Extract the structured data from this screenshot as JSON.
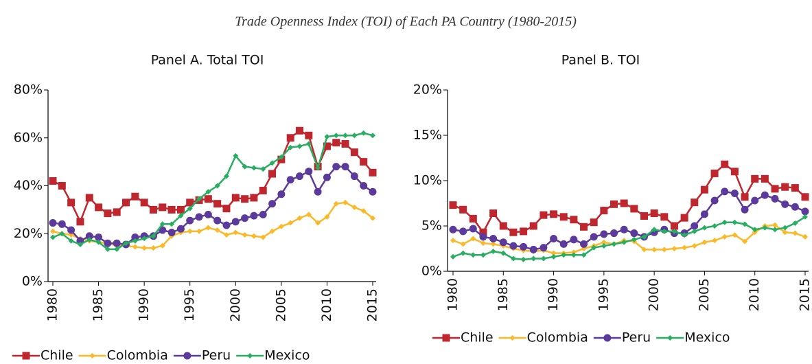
{
  "title": "Trade Openness Index (TOI) of Each PA Country (1980-2015)",
  "chart_data": [
    {
      "type": "line",
      "title": "Panel A. Total TOI",
      "x": [
        1980,
        1981,
        1982,
        1983,
        1984,
        1985,
        1986,
        1987,
        1988,
        1989,
        1990,
        1991,
        1992,
        1993,
        1994,
        1995,
        1996,
        1997,
        1998,
        1999,
        2000,
        2001,
        2002,
        2003,
        2004,
        2005,
        2006,
        2007,
        2008,
        2009,
        2010,
        2011,
        2012,
        2013,
        2014,
        2015
      ],
      "xlim": [
        1980,
        2015
      ],
      "xticks": [
        1980,
        1985,
        1990,
        1995,
        2000,
        2005,
        2010,
        2015
      ],
      "ylim": [
        0,
        80
      ],
      "yticks": [
        {
          "value": 0,
          "label": "0%"
        },
        {
          "value": 20,
          "label": "20%"
        },
        {
          "value": 40,
          "label": "40%"
        },
        {
          "value": 60,
          "label": "60%"
        },
        {
          "value": 80,
          "label": "80%"
        }
      ],
      "legend": "bottom",
      "series": [
        {
          "name": "Chile",
          "color": "#c0262d",
          "marker": "square",
          "values": [
            42,
            40,
            33,
            25,
            35,
            31,
            28.5,
            29,
            33,
            35.5,
            33,
            30,
            31,
            30,
            30,
            33,
            34,
            34.5,
            32.5,
            30.5,
            35,
            34.5,
            35,
            38,
            45,
            51,
            60,
            63,
            61,
            48,
            56.5,
            58,
            57.5,
            54,
            50,
            45.5
          ]
        },
        {
          "name": "Colombia",
          "color": "#fbb827",
          "marker": "diamond",
          "values": [
            21,
            20,
            19.5,
            18,
            17,
            16.5,
            16,
            15,
            15,
            14.5,
            14,
            14,
            15,
            19,
            20.5,
            21,
            21,
            22.5,
            21.5,
            19.5,
            20.5,
            19.5,
            19,
            18.5,
            21,
            23,
            24.5,
            26.5,
            28,
            24.5,
            27,
            32.5,
            33,
            31,
            29.5,
            26.5
          ]
        },
        {
          "name": "Peru",
          "color": "#5b3a9b",
          "marker": "circle",
          "values": [
            24.5,
            24,
            21.5,
            17,
            19,
            18.5,
            16,
            16,
            15.5,
            18.5,
            19,
            19,
            21.5,
            20.5,
            22,
            25.5,
            27,
            28,
            25.5,
            23.5,
            25,
            26.5,
            27.5,
            28,
            32.5,
            36.5,
            42.5,
            44,
            46,
            37.5,
            43.5,
            48,
            48,
            44,
            40,
            37.5
          ]
        },
        {
          "name": "Mexico",
          "color": "#27ae60",
          "marker": "diamond",
          "values": [
            18.5,
            20,
            17,
            15.5,
            17.5,
            16.5,
            13.5,
            13.5,
            16,
            17,
            18,
            19,
            24,
            24,
            27.5,
            30.5,
            34.5,
            37.5,
            40,
            44,
            52.5,
            48,
            47.5,
            47,
            49.5,
            52,
            56,
            56.5,
            57.5,
            47.5,
            60.5,
            61,
            61,
            61,
            62,
            61
          ]
        }
      ]
    },
    {
      "type": "line",
      "title": "Panel B. TOI",
      "x": [
        1980,
        1981,
        1982,
        1983,
        1984,
        1985,
        1986,
        1987,
        1988,
        1989,
        1990,
        1991,
        1992,
        1993,
        1994,
        1995,
        1996,
        1997,
        1998,
        1999,
        2000,
        2001,
        2002,
        2003,
        2004,
        2005,
        2006,
        2007,
        2008,
        2009,
        2010,
        2011,
        2012,
        2013,
        2014,
        2015
      ],
      "xlim": [
        1980,
        2015
      ],
      "xticks": [
        1980,
        1985,
        1990,
        1995,
        2000,
        2005,
        2010,
        2015
      ],
      "ylim": [
        0,
        20
      ],
      "yticks": [
        {
          "value": 0,
          "label": "0%"
        },
        {
          "value": 5,
          "label": "5%"
        },
        {
          "value": 10,
          "label": "10%"
        },
        {
          "value": 15,
          "label": "15%"
        },
        {
          "value": 20,
          "label": "20%"
        }
      ],
      "legend": "bottom",
      "series": [
        {
          "name": "Chile",
          "color": "#c0262d",
          "marker": "square",
          "values": [
            7.3,
            6.8,
            5.8,
            4.3,
            6.4,
            5,
            4.3,
            4.4,
            5,
            6.2,
            6.3,
            6,
            5.7,
            4.9,
            5.4,
            6.7,
            7.4,
            7.5,
            6.9,
            6.1,
            6.4,
            6,
            5,
            5.9,
            7.6,
            9,
            10.8,
            11.8,
            11,
            8.2,
            10.2,
            10.2,
            9.1,
            9.3,
            9.2,
            8.2
          ]
        },
        {
          "name": "Colombia",
          "color": "#fbb827",
          "marker": "diamond",
          "values": [
            3.4,
            3,
            3.6,
            3.1,
            3,
            2.8,
            2.5,
            2.3,
            2.2,
            2.3,
            2,
            2,
            2.1,
            2.5,
            2.8,
            3.2,
            3,
            3.4,
            3.3,
            2.4,
            2.4,
            2.4,
            2.5,
            2.6,
            2.8,
            3.2,
            3.4,
            3.8,
            4,
            3.3,
            4.3,
            5,
            5.1,
            4.3,
            4.2,
            3.8
          ]
        },
        {
          "name": "Peru",
          "color": "#5b3a9b",
          "marker": "circle",
          "values": [
            4.6,
            4.4,
            4.7,
            3.8,
            3.6,
            3.2,
            2.8,
            2.7,
            2.4,
            2.6,
            3.6,
            3,
            3.5,
            3,
            3.8,
            4.1,
            4.2,
            4.6,
            4.2,
            3.8,
            4.3,
            4.6,
            4.2,
            4.2,
            5,
            6.3,
            7.8,
            8.8,
            8.6,
            6.8,
            7.8,
            8.4,
            8,
            7.4,
            7.1,
            6.6
          ]
        },
        {
          "name": "Mexico",
          "color": "#27ae60",
          "marker": "diamond",
          "values": [
            1.6,
            2,
            1.8,
            1.8,
            2.2,
            2,
            1.4,
            1.3,
            1.4,
            1.4,
            1.6,
            1.8,
            1.8,
            1.8,
            2.6,
            2.8,
            3,
            3.2,
            3.5,
            3.8,
            4.6,
            4.4,
            4.4,
            4,
            4.4,
            4.8,
            5,
            5.4,
            5.4,
            5.2,
            4.6,
            4.8,
            4.6,
            4.8,
            5.3,
            6
          ]
        }
      ]
    }
  ]
}
